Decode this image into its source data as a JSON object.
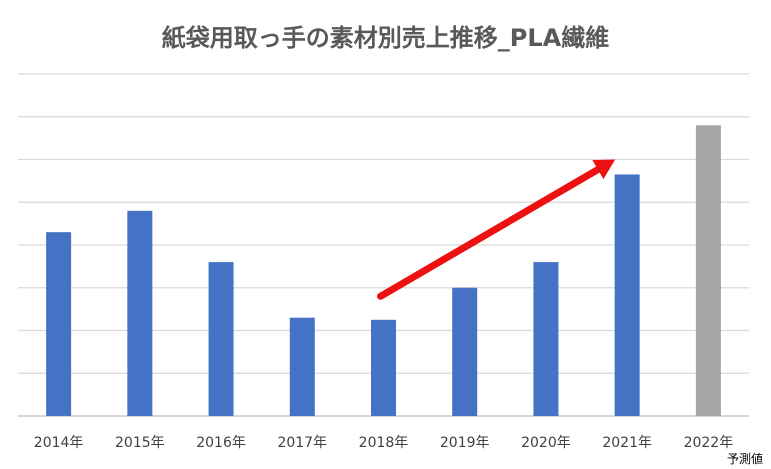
{
  "chart_data": {
    "type": "bar",
    "title": "紙袋用取っ手の素材別売上推移_PLA繊維",
    "categories": [
      "2014年",
      "2015年",
      "2016年",
      "2017年",
      "2018年",
      "2019年",
      "2020年",
      "2021年",
      "2022年"
    ],
    "values": [
      4.3,
      4.8,
      3.6,
      2.3,
      2.25,
      3.0,
      3.6,
      5.65,
      6.8
    ],
    "ylim": [
      0,
      8
    ],
    "grid": true,
    "colors": {
      "actual": "#4472c4",
      "forecast": "#a5a5a5",
      "trend_arrow": "#ee1111",
      "gridline": "#d9d9d9"
    },
    "forecast_index": 8,
    "forecast_label": "予測値",
    "trend_arrow": {
      "from": {
        "x": "2018年",
        "y": 2.8
      },
      "to": {
        "x": "2021年",
        "y": 6.0
      }
    }
  }
}
